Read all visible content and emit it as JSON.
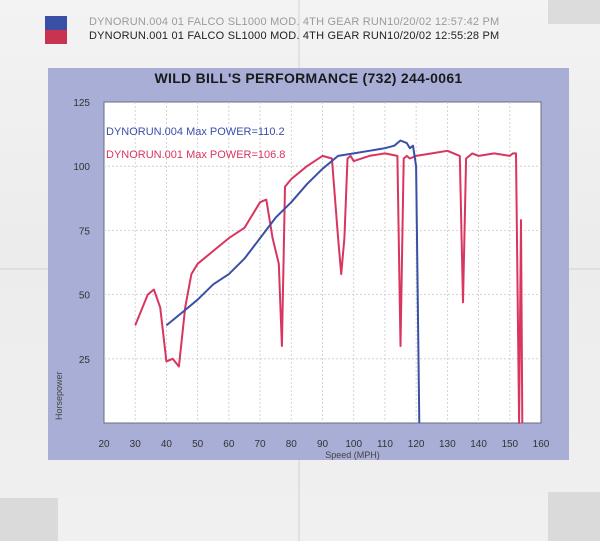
{
  "legend": [
    {
      "swatch": "#3a4fa6",
      "text": "DYNORUN.004   01 FALCO SL1000 MOD. 4TH GEAR RUN10/20/02 12:57:42 PM"
    },
    {
      "swatch": "#c8334f",
      "text": "DYNORUN.001   01 FALCO SL1000 MOD. 4TH GEAR RUN10/20/02 12:55:28 PM"
    }
  ],
  "colors": {
    "blue": "#3a4fa6",
    "red": "#d8355f",
    "frame": "#a9aed6"
  },
  "chart_data": {
    "type": "line",
    "title": "WILD BILL'S PERFORMANCE (732) 244-0061",
    "xlabel": "Speed (MPH)",
    "ylabel": "Horsepower",
    "xlim": [
      20,
      160
    ],
    "ylim": [
      0,
      125
    ],
    "xticks": [
      "20",
      "30",
      "40",
      "50",
      "60",
      "70",
      "80",
      "90",
      "100",
      "110",
      "120",
      "130",
      "140",
      "150",
      "160"
    ],
    "yticks": [
      "25",
      "50",
      "75",
      "100",
      "125"
    ],
    "grid": true,
    "annotations": [
      {
        "text": "DYNORUN.004  Max POWER=110.2",
        "color": "#3a4fa6"
      },
      {
        "text": "DYNORUN.001  Max POWER=106.8",
        "color": "#d8355f"
      }
    ],
    "series": [
      {
        "name": "DYNORUN.004",
        "color": "#3a4fa6",
        "x": [
          40,
          45,
          50,
          55,
          60,
          65,
          70,
          75,
          80,
          85,
          90,
          95,
          100,
          105,
          110,
          113,
          115,
          117,
          118,
          119,
          120,
          121
        ],
        "y": [
          38,
          43,
          48,
          54,
          58,
          64,
          72,
          80,
          86,
          93,
          99,
          104,
          105,
          106,
          107,
          108,
          110,
          109,
          107,
          108,
          100,
          0
        ]
      },
      {
        "name": "DYNORUN.001",
        "color": "#d8355f",
        "x": [
          30,
          32,
          34,
          36,
          38,
          40,
          42,
          44,
          46,
          48,
          50,
          55,
          60,
          65,
          70,
          72,
          74,
          76,
          77,
          78,
          80,
          85,
          90,
          93,
          95,
          96,
          97,
          98,
          99,
          100,
          105,
          110,
          114,
          115,
          116,
          117,
          118,
          120,
          125,
          130,
          134,
          135,
          136,
          138,
          140,
          145,
          150,
          151,
          152,
          153,
          153.6,
          154
        ],
        "y": [
          38,
          44,
          50,
          52,
          45,
          24,
          25,
          22,
          45,
          58,
          62,
          67,
          72,
          76,
          86,
          87,
          72,
          62,
          30,
          92,
          95,
          100,
          104,
          103,
          72,
          58,
          72,
          103,
          104,
          102,
          104,
          105,
          104,
          30,
          103,
          104,
          103,
          104,
          105,
          106,
          104,
          47,
          103,
          105,
          104,
          105,
          104,
          105,
          105,
          0,
          79,
          0
        ]
      }
    ]
  }
}
